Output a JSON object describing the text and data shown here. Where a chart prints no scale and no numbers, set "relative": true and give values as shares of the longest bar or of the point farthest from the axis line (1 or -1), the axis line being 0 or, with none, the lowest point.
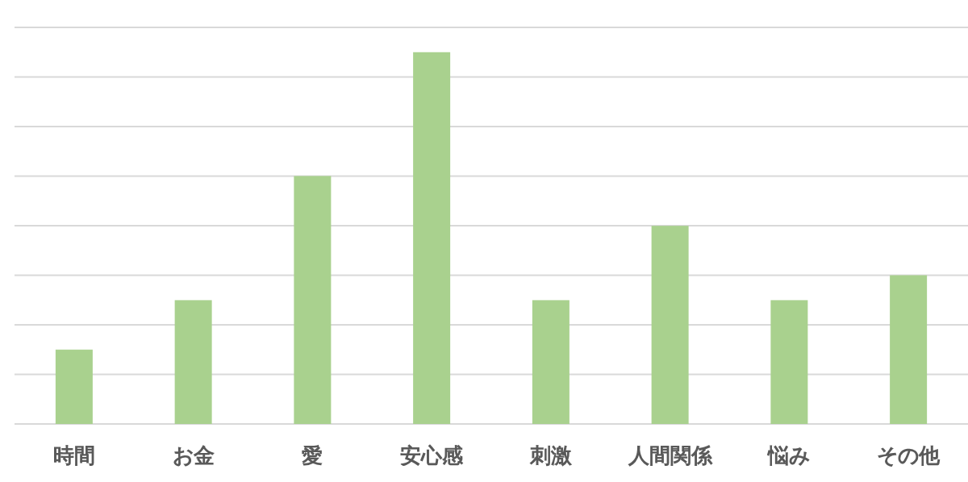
{
  "chart_data": {
    "type": "bar",
    "relative": true,
    "grid": "y",
    "color": "#a9d18e",
    "categories": [
      "時間",
      "お金",
      "愛",
      "安心感",
      "刺激",
      "人間関係",
      "悩み",
      "その他"
    ],
    "values": [
      0.2,
      0.333,
      0.667,
      1,
      0.333,
      0.533,
      0.333,
      0.4
    ]
  }
}
